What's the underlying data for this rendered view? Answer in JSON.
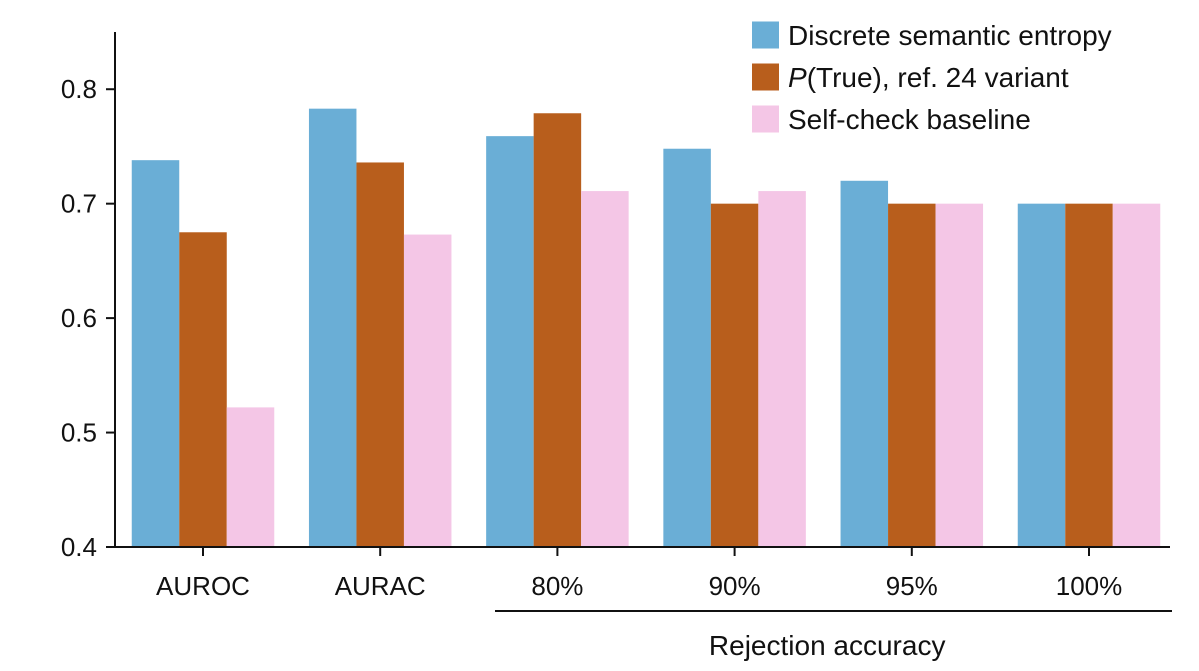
{
  "chart_data": {
    "type": "bar",
    "categories": [
      "AUROC",
      "AURAC",
      "80%",
      "90%",
      "95%",
      "100%"
    ],
    "series": [
      {
        "name": "Discrete semantic entropy",
        "color": "#6aaed6",
        "values": [
          0.738,
          0.783,
          0.759,
          0.748,
          0.72,
          0.7
        ]
      },
      {
        "name_prefix": "P",
        "name_suffix": "(True), ref. 24 variant",
        "color": "#b85e1c",
        "values": [
          0.675,
          0.736,
          0.779,
          0.7,
          0.7,
          0.7
        ]
      },
      {
        "name": "Self-check baseline",
        "color": "#f4c6e6",
        "values": [
          0.522,
          0.673,
          0.711,
          0.711,
          0.7,
          0.7
        ]
      }
    ],
    "ylim": [
      0.4,
      0.85
    ],
    "yticks": [
      "0.4",
      "0.5",
      "0.6",
      "0.7",
      "0.8"
    ],
    "group_label": "Rejection accuracy",
    "grid": false,
    "legend_position": "top-right"
  }
}
